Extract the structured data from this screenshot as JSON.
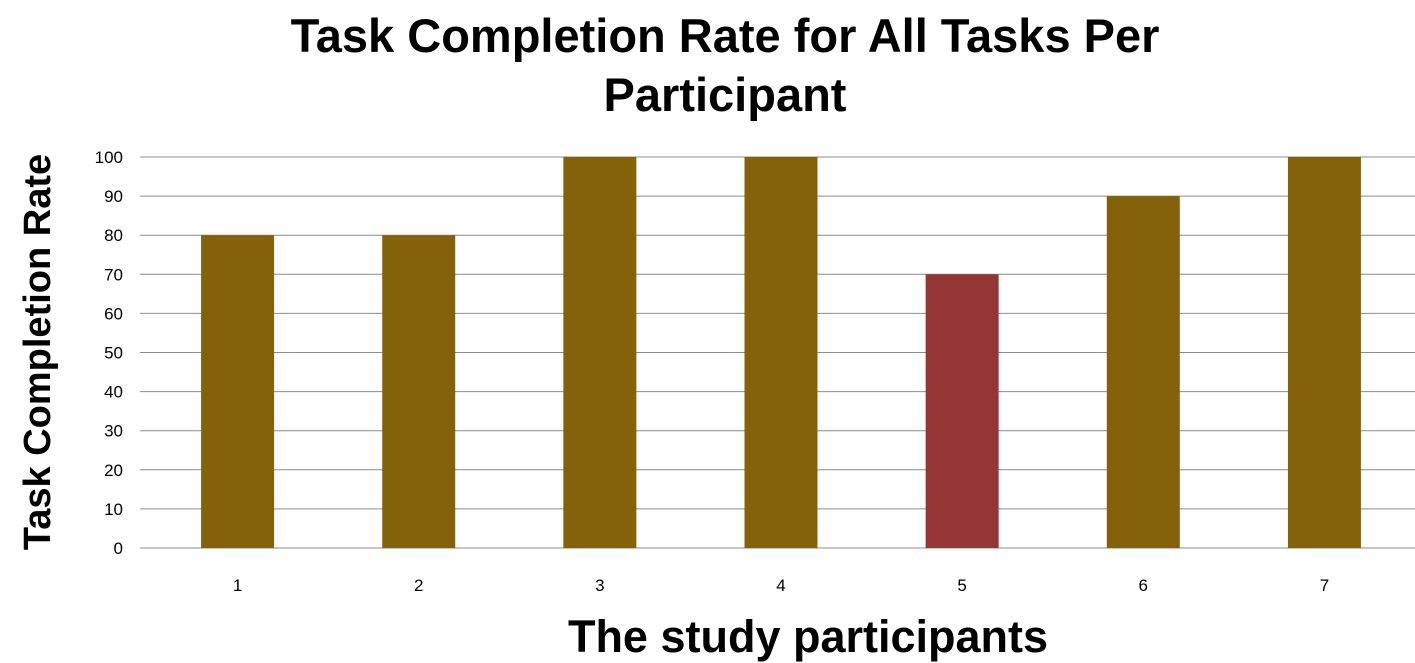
{
  "chart_data": {
    "type": "bar",
    "title": "Task Completion Rate for All Tasks Per Participant",
    "title_lines": [
      "Task Completion Rate for All Tasks Per",
      "Participant"
    ],
    "xlabel": "The study participants",
    "ylabel": "Task Completion Rate",
    "categories": [
      "1",
      "2",
      "3",
      "4",
      "5",
      "6",
      "7"
    ],
    "values": [
      80,
      80,
      100,
      100,
      70,
      90,
      100
    ],
    "ylim": [
      0,
      100
    ],
    "yticks": [
      "0",
      "10",
      "20",
      "30",
      "40",
      "50",
      "60",
      "70",
      "80",
      "90",
      "100"
    ],
    "grid": true,
    "legend": "none",
    "colors": {
      "default_bar": "#83620A",
      "highlight_bar": "#943634",
      "gridline": "#8C8C8C"
    },
    "highlighted_category": "5"
  }
}
